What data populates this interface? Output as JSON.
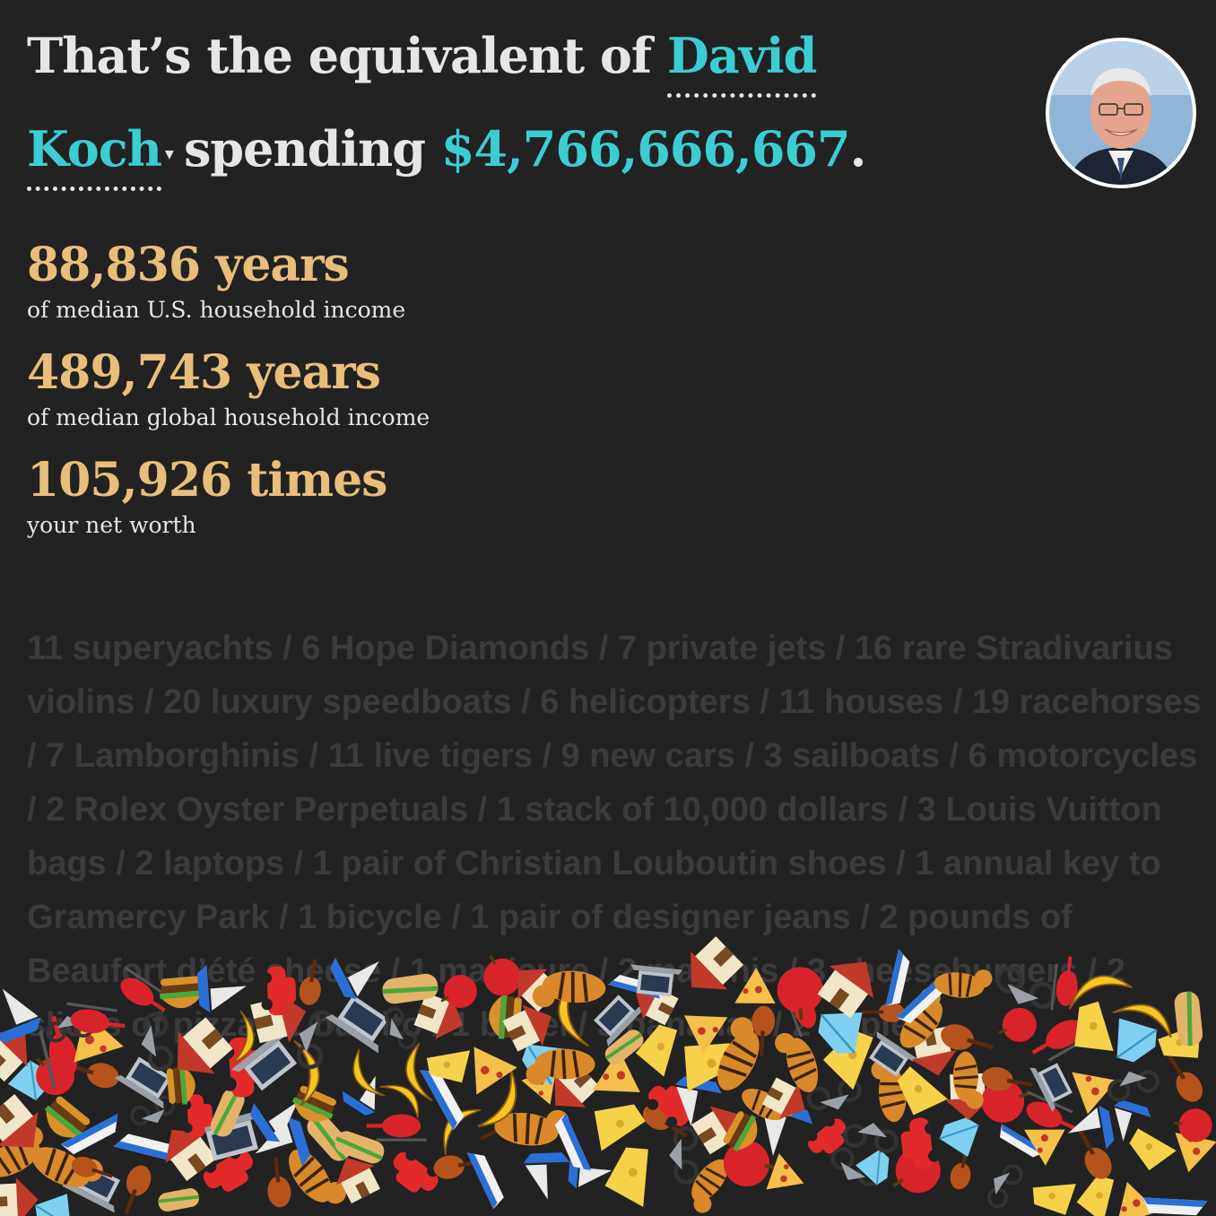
{
  "headline": {
    "prefix": "That’s the equivalent of",
    "person_first": "David",
    "person_last": "Koch",
    "dropdown_caret": "▾",
    "middle": "spending",
    "amount": "$4,766,666,667",
    "suffix": "."
  },
  "avatar": {
    "icon": "person-portrait"
  },
  "stats": [
    {
      "value": "88,836 years",
      "label": "of median U.S. household income"
    },
    {
      "value": "489,743 years",
      "label": "of median global household income"
    },
    {
      "value": "105,926 times",
      "label": "your net worth"
    }
  ],
  "items_text": "11 superyachts / 6 Hope Diamonds / 7 private jets / 16 rare Stradivarius violins / 20 luxury speedboats / 6 helicopters / 11 houses / 19 racehorses / 7 Lamborghinis / 11 live tigers / 9 new cars / 3 sailboats / 6 motorcycles / 2 Rolex Oyster Perpetuals / 1 stack of 10,000 dollars / 3 Louis Vuitton bags / 2 laptops / 1 pair of Christian Louboutin shoes / 1 annual key to Gramercy Park / 1 bicycle / 1 pair of designer jeans / 2 pounds of Beaufort d’été cheese / 1 manicure / 2 martinis / 3 cheeseburgers / 2 slices of pizza / 1 burrito / 1 bagel / 3 bananas / 2 apples",
  "colors": {
    "background": "#222222",
    "accent": "#3ccdd3",
    "stat": "#e7be7a",
    "text": "#e6e6e6",
    "items": "#3b3b3b"
  },
  "emoji_pile": {
    "icons": [
      "banana",
      "house",
      "violin",
      "car",
      "cheese",
      "tiger",
      "speedboat",
      "sailboat",
      "burger",
      "pizza",
      "laptop",
      "apple",
      "helicopter",
      "motorcycle",
      "diamond",
      "burrito"
    ]
  }
}
